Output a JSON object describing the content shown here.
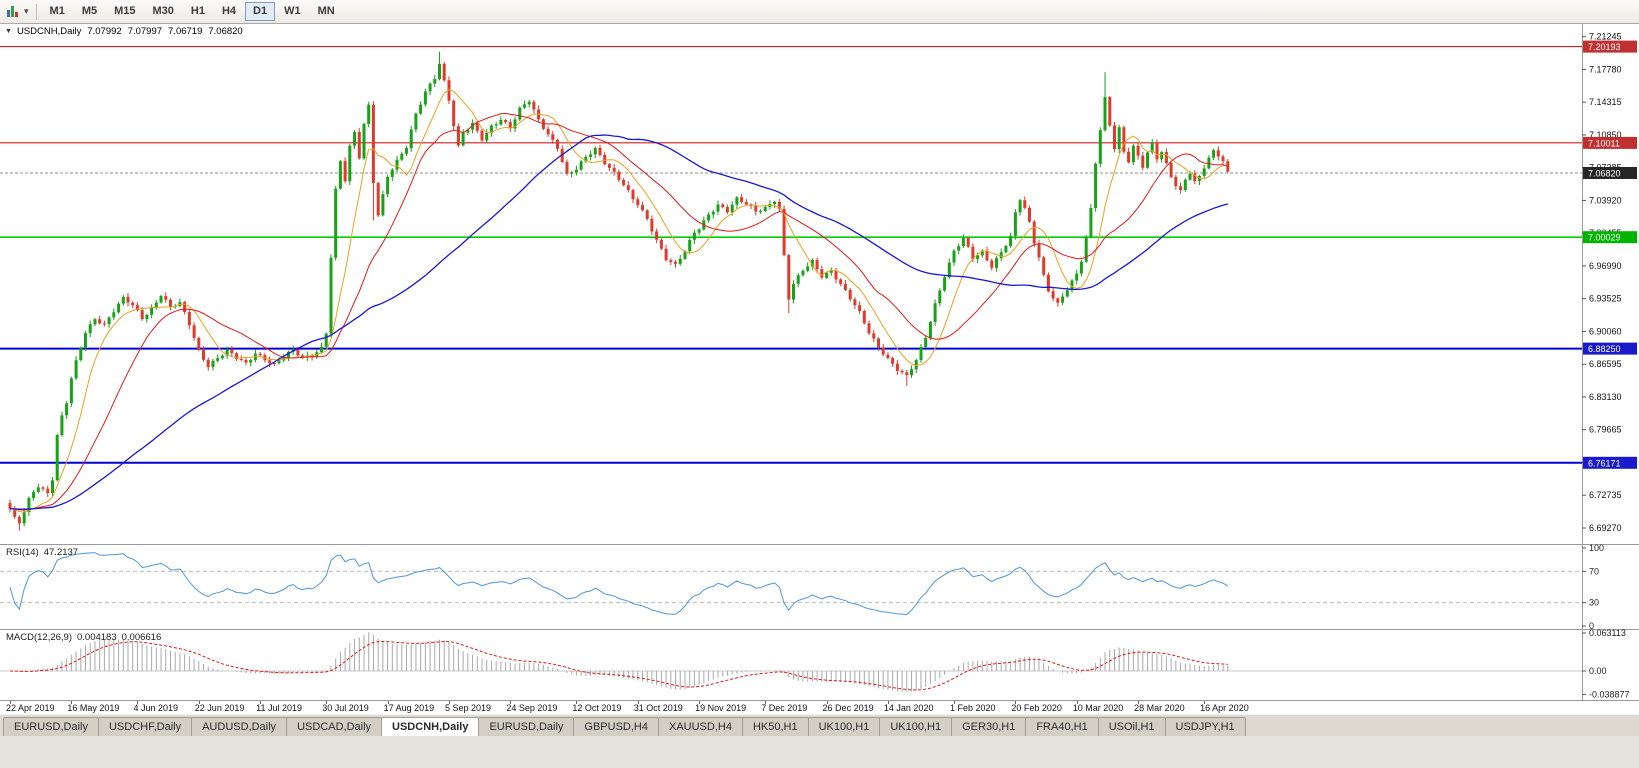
{
  "toolbar": {
    "caret_glyph": "▾",
    "periods": [
      {
        "label": "M1",
        "active": false
      },
      {
        "label": "M5",
        "active": false
      },
      {
        "label": "M15",
        "active": false
      },
      {
        "label": "M30",
        "active": false
      },
      {
        "label": "H1",
        "active": false
      },
      {
        "label": "H4",
        "active": false
      },
      {
        "label": "D1",
        "active": true
      },
      {
        "label": "W1",
        "active": false
      },
      {
        "label": "MN",
        "active": false
      }
    ]
  },
  "quote": {
    "collapse_glyph": "▼",
    "symbol_period": "USDCNH,Daily",
    "open": "7.07992",
    "high": "7.07997",
    "low": "7.06719",
    "close": "7.06820"
  },
  "price_axis": {
    "ticks": [
      "7.21245",
      "7.17780",
      "7.14315",
      "7.10850",
      "7.07385",
      "7.03920",
      "7.00455",
      "6.96990",
      "6.93525",
      "6.90060",
      "6.86595",
      "6.83130",
      "6.79665",
      "6.76200",
      "6.72735",
      "6.69270"
    ],
    "badges": [
      {
        "name": "resistance-upper",
        "value": "7.20193",
        "price": 7.20193,
        "color": "#c03030"
      },
      {
        "name": "resistance-lower",
        "value": "7.10011",
        "price": 7.10011,
        "color": "#c03030"
      },
      {
        "name": "current-price",
        "value": "7.06820",
        "price": 7.0682,
        "color": "#262626"
      },
      {
        "name": "support-green",
        "value": "7.00029",
        "price": 7.00029,
        "color": "#00b300"
      },
      {
        "name": "support-blue-upper",
        "value": "6.88250",
        "price": 6.8825,
        "color": "#1a1acc"
      },
      {
        "name": "support-blue-lower",
        "value": "6.76171",
        "price": 6.76171,
        "color": "#1a1acc"
      }
    ]
  },
  "hlines": [
    {
      "name": "resistance-line-upper",
      "price": 7.20193,
      "color": "#d02020",
      "width": 1.1
    },
    {
      "name": "resistance-line-lower",
      "price": 7.10011,
      "color": "#d02020",
      "width": 1.1
    },
    {
      "name": "support-line-green",
      "price": 7.00029,
      "color": "#00d000",
      "width": 1.6
    },
    {
      "name": "support-line-blue-upper",
      "price": 6.8825,
      "color": "#0000d0",
      "width": 2
    },
    {
      "name": "support-line-blue-lower",
      "price": 6.76171,
      "color": "#0000d0",
      "width": 2
    }
  ],
  "date_axis": {
    "labels": [
      "22 Apr 2019",
      "16 May 2019",
      "4 Jun 2019",
      "22 Jun 2019",
      "11 Jul 2019",
      "30 Jul 2019",
      "17 Aug 2019",
      "5 Sep 2019",
      "24 Sep 2019",
      "12 Oct 2019",
      "31 Oct 2019",
      "19 Nov 2019",
      "7 Dec 2019",
      "26 Dec 2019",
      "14 Jan 2020",
      "1 Feb 2020",
      "20 Feb 2020",
      "10 Mar 2020",
      "28 Mar 2020",
      "16 Apr 2020"
    ]
  },
  "rsi": {
    "label": "RSI(14)",
    "value": "47.2137",
    "period": 14,
    "levels": [
      "100",
      "70",
      "30",
      "0"
    ],
    "line_color": "#4e96d8"
  },
  "macd": {
    "label": "MACD(12,26,9)",
    "value_main": "0.004183",
    "value_signal": "0.006616",
    "axis": [
      "0.063113",
      "0.00",
      "-0.038877"
    ],
    "histogram_color": "#a8a8a8",
    "signal_color": "#e01818"
  },
  "tabs": [
    {
      "label": "EURUSD,Daily",
      "active": false
    },
    {
      "label": "USDCHF,Daily",
      "active": false
    },
    {
      "label": "AUDUSD,Daily",
      "active": false
    },
    {
      "label": "USDCAD,Daily",
      "active": false
    },
    {
      "label": "USDCNH,Daily",
      "active": true
    },
    {
      "label": "EURUSD,Daily",
      "active": false
    },
    {
      "label": "GBPUSD,H4",
      "active": false
    },
    {
      "label": "XAUUSD,H4",
      "active": false
    },
    {
      "label": "HK50,H1",
      "active": false
    },
    {
      "label": "UK100,H1",
      "active": false
    },
    {
      "label": "UK100,H1",
      "active": false
    },
    {
      "label": "GER30,H1",
      "active": false
    },
    {
      "label": "FRA40,H1",
      "active": false
    },
    {
      "label": "USOil,H1",
      "active": false
    },
    {
      "label": "USDJPY,H1",
      "active": false
    }
  ],
  "chart": {
    "type": "candlestick",
    "bull_color": "#17a217",
    "bear_color": "#e03a2c",
    "ma_fast_color": "#e8a220",
    "ma_mid_color": "#e41818",
    "ma_slow_color": "#1818d8",
    "current_price": 7.0682,
    "candle_count": 259,
    "close_waypoints": [
      [
        0,
        6.712
      ],
      [
        1,
        6.702
      ],
      [
        2,
        6.698
      ],
      [
        3,
        6.71
      ],
      [
        4,
        6.723
      ],
      [
        5,
        6.732
      ],
      [
        6,
        6.738
      ],
      [
        7,
        6.734
      ],
      [
        8,
        6.73
      ],
      [
        9,
        6.745
      ],
      [
        10,
        6.79
      ],
      [
        11,
        6.81
      ],
      [
        12,
        6.825
      ],
      [
        13,
        6.85
      ],
      [
        14,
        6.868
      ],
      [
        16,
        6.9
      ],
      [
        18,
        6.915
      ],
      [
        20,
        6.908
      ],
      [
        22,
        6.922
      ],
      [
        24,
        6.935
      ],
      [
        26,
        6.928
      ],
      [
        28,
        6.915
      ],
      [
        30,
        6.925
      ],
      [
        32,
        6.94
      ],
      [
        34,
        6.926
      ],
      [
        36,
        6.93
      ],
      [
        38,
        6.908
      ],
      [
        40,
        6.88
      ],
      [
        42,
        6.865
      ],
      [
        44,
        6.873
      ],
      [
        46,
        6.88
      ],
      [
        48,
        6.872
      ],
      [
        50,
        6.866
      ],
      [
        52,
        6.878
      ],
      [
        54,
        6.872
      ],
      [
        56,
        6.866
      ],
      [
        58,
        6.874
      ],
      [
        60,
        6.88
      ],
      [
        62,
        6.872
      ],
      [
        64,
        6.876
      ],
      [
        66,
        6.884
      ],
      [
        67,
        6.9
      ],
      [
        68,
        6.98
      ],
      [
        69,
        7.05
      ],
      [
        70,
        7.08
      ],
      [
        71,
        7.06
      ],
      [
        72,
        7.095
      ],
      [
        73,
        7.11
      ],
      [
        74,
        7.085
      ],
      [
        75,
        7.12
      ],
      [
        76,
        7.14
      ],
      [
        77,
        7.06
      ],
      [
        78,
        7.025
      ],
      [
        79,
        7.045
      ],
      [
        80,
        7.065
      ],
      [
        82,
        7.08
      ],
      [
        84,
        7.095
      ],
      [
        86,
        7.13
      ],
      [
        88,
        7.155
      ],
      [
        90,
        7.17
      ],
      [
        91,
        7.185
      ],
      [
        92,
        7.165
      ],
      [
        93,
        7.145
      ],
      [
        94,
        7.118
      ],
      [
        95,
        7.095
      ],
      [
        96,
        7.11
      ],
      [
        98,
        7.12
      ],
      [
        100,
        7.105
      ],
      [
        102,
        7.118
      ],
      [
        104,
        7.125
      ],
      [
        106,
        7.115
      ],
      [
        108,
        7.135
      ],
      [
        110,
        7.145
      ],
      [
        112,
        7.125
      ],
      [
        114,
        7.11
      ],
      [
        116,
        7.095
      ],
      [
        118,
        7.065
      ],
      [
        120,
        7.072
      ],
      [
        122,
        7.085
      ],
      [
        124,
        7.095
      ],
      [
        126,
        7.08
      ],
      [
        128,
        7.068
      ],
      [
        130,
        7.055
      ],
      [
        132,
        7.04
      ],
      [
        133,
        7.035
      ],
      [
        135,
        7.02
      ],
      [
        137,
        6.998
      ],
      [
        139,
        6.978
      ],
      [
        141,
        6.97
      ],
      [
        143,
        6.985
      ],
      [
        145,
        7.005
      ],
      [
        146,
        7.01
      ],
      [
        148,
        7.025
      ],
      [
        150,
        7.035
      ],
      [
        152,
        7.028
      ],
      [
        154,
        7.04
      ],
      [
        156,
        7.035
      ],
      [
        158,
        7.028
      ],
      [
        160,
        7.032
      ],
      [
        162,
        7.04
      ],
      [
        163,
        7.03
      ],
      [
        164,
        6.98
      ],
      [
        165,
        6.935
      ],
      [
        166,
        6.95
      ],
      [
        168,
        6.965
      ],
      [
        170,
        6.975
      ],
      [
        172,
        6.96
      ],
      [
        174,
        6.965
      ],
      [
        176,
        6.95
      ],
      [
        178,
        6.935
      ],
      [
        180,
        6.92
      ],
      [
        182,
        6.9
      ],
      [
        184,
        6.885
      ],
      [
        186,
        6.872
      ],
      [
        188,
        6.86
      ],
      [
        190,
        6.852
      ],
      [
        192,
        6.87
      ],
      [
        194,
        6.895
      ],
      [
        196,
        6.93
      ],
      [
        198,
        6.96
      ],
      [
        200,
        6.985
      ],
      [
        202,
        6.998
      ],
      [
        204,
        6.978
      ],
      [
        206,
        6.985
      ],
      [
        208,
        6.97
      ],
      [
        210,
        6.985
      ],
      [
        212,
        7.0
      ],
      [
        213,
        7.025
      ],
      [
        214,
        7.04
      ],
      [
        215,
        7.03
      ],
      [
        216,
        7.015
      ],
      [
        217,
        6.995
      ],
      [
        218,
        6.98
      ],
      [
        219,
        6.96
      ],
      [
        220,
        6.945
      ],
      [
        222,
        6.93
      ],
      [
        224,
        6.945
      ],
      [
        226,
        6.96
      ],
      [
        227,
        6.975
      ],
      [
        228,
        7.0
      ],
      [
        229,
        7.03
      ],
      [
        230,
        7.08
      ],
      [
        231,
        7.115
      ],
      [
        232,
        7.148
      ],
      [
        233,
        7.12
      ],
      [
        234,
        7.095
      ],
      [
        235,
        7.115
      ],
      [
        236,
        7.09
      ],
      [
        237,
        7.08
      ],
      [
        238,
        7.095
      ],
      [
        239,
        7.085
      ],
      [
        240,
        7.075
      ],
      [
        241,
        7.09
      ],
      [
        242,
        7.1
      ],
      [
        243,
        7.085
      ],
      [
        244,
        7.092
      ],
      [
        245,
        7.078
      ],
      [
        246,
        7.065
      ],
      [
        247,
        7.055
      ],
      [
        248,
        7.048
      ],
      [
        249,
        7.06
      ],
      [
        250,
        7.068
      ],
      [
        251,
        7.058
      ],
      [
        252,
        7.064
      ],
      [
        253,
        7.075
      ],
      [
        254,
        7.085
      ],
      [
        255,
        7.092
      ],
      [
        256,
        7.088
      ],
      [
        257,
        7.082
      ],
      [
        258,
        7.0682
      ]
    ],
    "wick_overrides": [
      [
        2,
        null,
        6.69
      ],
      [
        77,
        7.143,
        7.018
      ],
      [
        91,
        7.1965,
        null
      ],
      [
        165,
        null,
        6.92
      ],
      [
        190,
        null,
        6.843
      ],
      [
        232,
        7.175,
        null
      ]
    ]
  }
}
